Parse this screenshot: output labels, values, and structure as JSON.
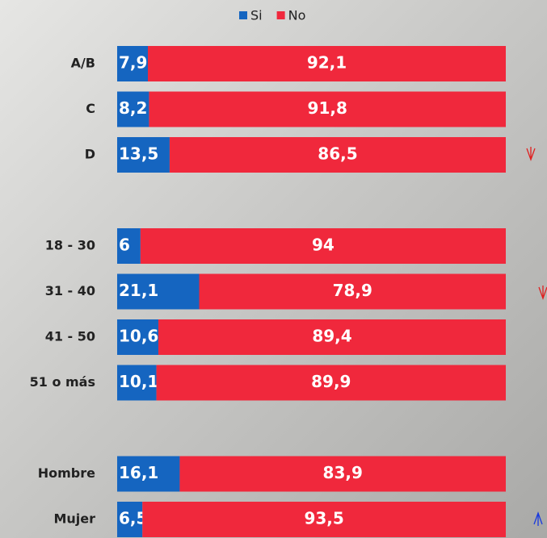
{
  "chart_data": {
    "type": "stacked-barh",
    "categories": [
      "A/B",
      "C",
      "D",
      null,
      "18 - 30",
      "31 - 40",
      "41 - 50",
      "51 o más",
      null,
      "Hombre",
      "Mujer"
    ],
    "series": [
      {
        "name": "Si",
        "color": "#1565c0",
        "values": [
          7.9,
          8.2,
          13.5,
          null,
          6,
          21.1,
          10.6,
          10.1,
          null,
          16.1,
          6.5
        ],
        "value_labels": [
          "7,9",
          "8,2",
          "13,5",
          null,
          "6",
          "21,1",
          "10,6",
          "10,1",
          null,
          "16,1",
          "6,5"
        ]
      },
      {
        "name": "No",
        "color": "#f0283c",
        "values": [
          92.1,
          91.8,
          86.5,
          null,
          94,
          78.9,
          89.4,
          89.9,
          null,
          83.9,
          93.5
        ],
        "value_labels": [
          "92,1",
          "91,8",
          "86,5",
          null,
          "94",
          "78,9",
          "89,4",
          "89,9",
          null,
          "83,9",
          "93,5"
        ]
      }
    ],
    "xlim": [
      0,
      100
    ],
    "legend": "top"
  }
}
